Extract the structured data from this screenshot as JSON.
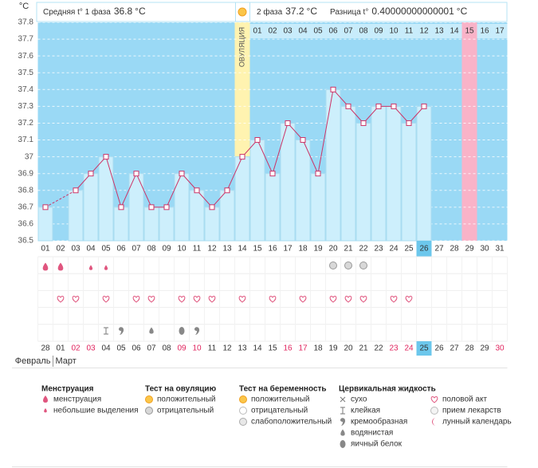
{
  "header": {
    "phase1_label": "Средняя t° 1 фаза",
    "phase1_value": 36.8,
    "phase2_label": "2 фаза",
    "phase2_value": 37.2,
    "diff_label": "Разница t°",
    "diff_value": 0.40000000000001,
    "unit": "°C"
  },
  "chart_data": {
    "type": "line",
    "y_unit": "°C",
    "categories": [
      "01",
      "02",
      "03",
      "04",
      "05",
      "06",
      "07",
      "08",
      "09",
      "10",
      "11",
      "12",
      "13",
      "14",
      "15",
      "16",
      "17",
      "18",
      "19",
      "20",
      "21",
      "22",
      "23",
      "24",
      "25",
      "26",
      "27",
      "28",
      "29",
      "30",
      "31"
    ],
    "series": [
      {
        "color": "#cc3366",
        "values": [
          36.7,
          null,
          36.8,
          36.9,
          37.0,
          36.7,
          36.9,
          36.7,
          36.7,
          36.9,
          36.8,
          36.7,
          36.8,
          37.0,
          37.1,
          36.9,
          37.2,
          37.1,
          36.9,
          37.4,
          37.3,
          37.2,
          37.3,
          37.3,
          37.2,
          37.3,
          null,
          null,
          null,
          null,
          null
        ]
      }
    ],
    "ylim": [
      36.5,
      37.8
    ],
    "yticks": [
      36.5,
      36.6,
      36.7,
      36.8,
      36.9,
      37,
      37.1,
      37.2,
      37.3,
      37.4,
      37.5,
      37.6,
      37.7,
      37.8
    ],
    "grid": true,
    "background": "#9ad9f5",
    "bar_color": "#cdeffc",
    "ovulation_index": 13,
    "ovulation_label": "ОВУЛЯЦИЯ",
    "ovulation_color": "#fff3b0",
    "expected_period_index": 28,
    "expected_period_color": "#f9b3c8",
    "today_index": 25,
    "phase2_days": [
      "01",
      "02",
      "03",
      "04",
      "05",
      "06",
      "07",
      "08",
      "09",
      "10",
      "11",
      "12",
      "13",
      "14",
      "15",
      "16",
      "17"
    ]
  },
  "symbols": {
    "menstruation": [
      0,
      1
    ],
    "spotting": [
      3,
      4
    ],
    "ovulation_test_negative": [
      19,
      20,
      21
    ],
    "intercourse": [
      1,
      2,
      4,
      6,
      7,
      9,
      10,
      11,
      13,
      15,
      17,
      19,
      20,
      21,
      23,
      24
    ],
    "cervical_sticky": [
      4
    ],
    "cervical_creamy": [
      5,
      10
    ],
    "cervical_watery": [
      7
    ],
    "cervical_egg_white": [
      9
    ]
  },
  "calendar": {
    "dates": [
      "28",
      "01",
      "02",
      "03",
      "04",
      "05",
      "06",
      "07",
      "08",
      "09",
      "10",
      "11",
      "12",
      "13",
      "14",
      "15",
      "16",
      "17",
      "18",
      "19",
      "20",
      "21",
      "22",
      "23",
      "24",
      "25",
      "26",
      "27",
      "28",
      "29",
      "30"
    ],
    "weekend_indices": [
      2,
      3,
      9,
      10,
      16,
      17,
      23,
      24,
      30
    ],
    "today_index": 25,
    "months": [
      "Февраль",
      "Март"
    ]
  },
  "legend": [
    {
      "title": "Менструация",
      "items": [
        "менструация",
        "небольшие выделения"
      ]
    },
    {
      "title": "Тест на овуляцию",
      "items": [
        "положительный",
        "отрицательный"
      ]
    },
    {
      "title": "Тест на беременность",
      "items": [
        "положительный",
        "отрицательный",
        "слабоположительный"
      ]
    },
    {
      "title": "Цервикальная жидкость",
      "items": [
        "сухо",
        "клейкая",
        "кремообразная",
        "водянистая",
        "яичный белок"
      ]
    },
    {
      "items": [
        "половой акт",
        "прием лекарств",
        "лунный календарь"
      ]
    }
  ]
}
